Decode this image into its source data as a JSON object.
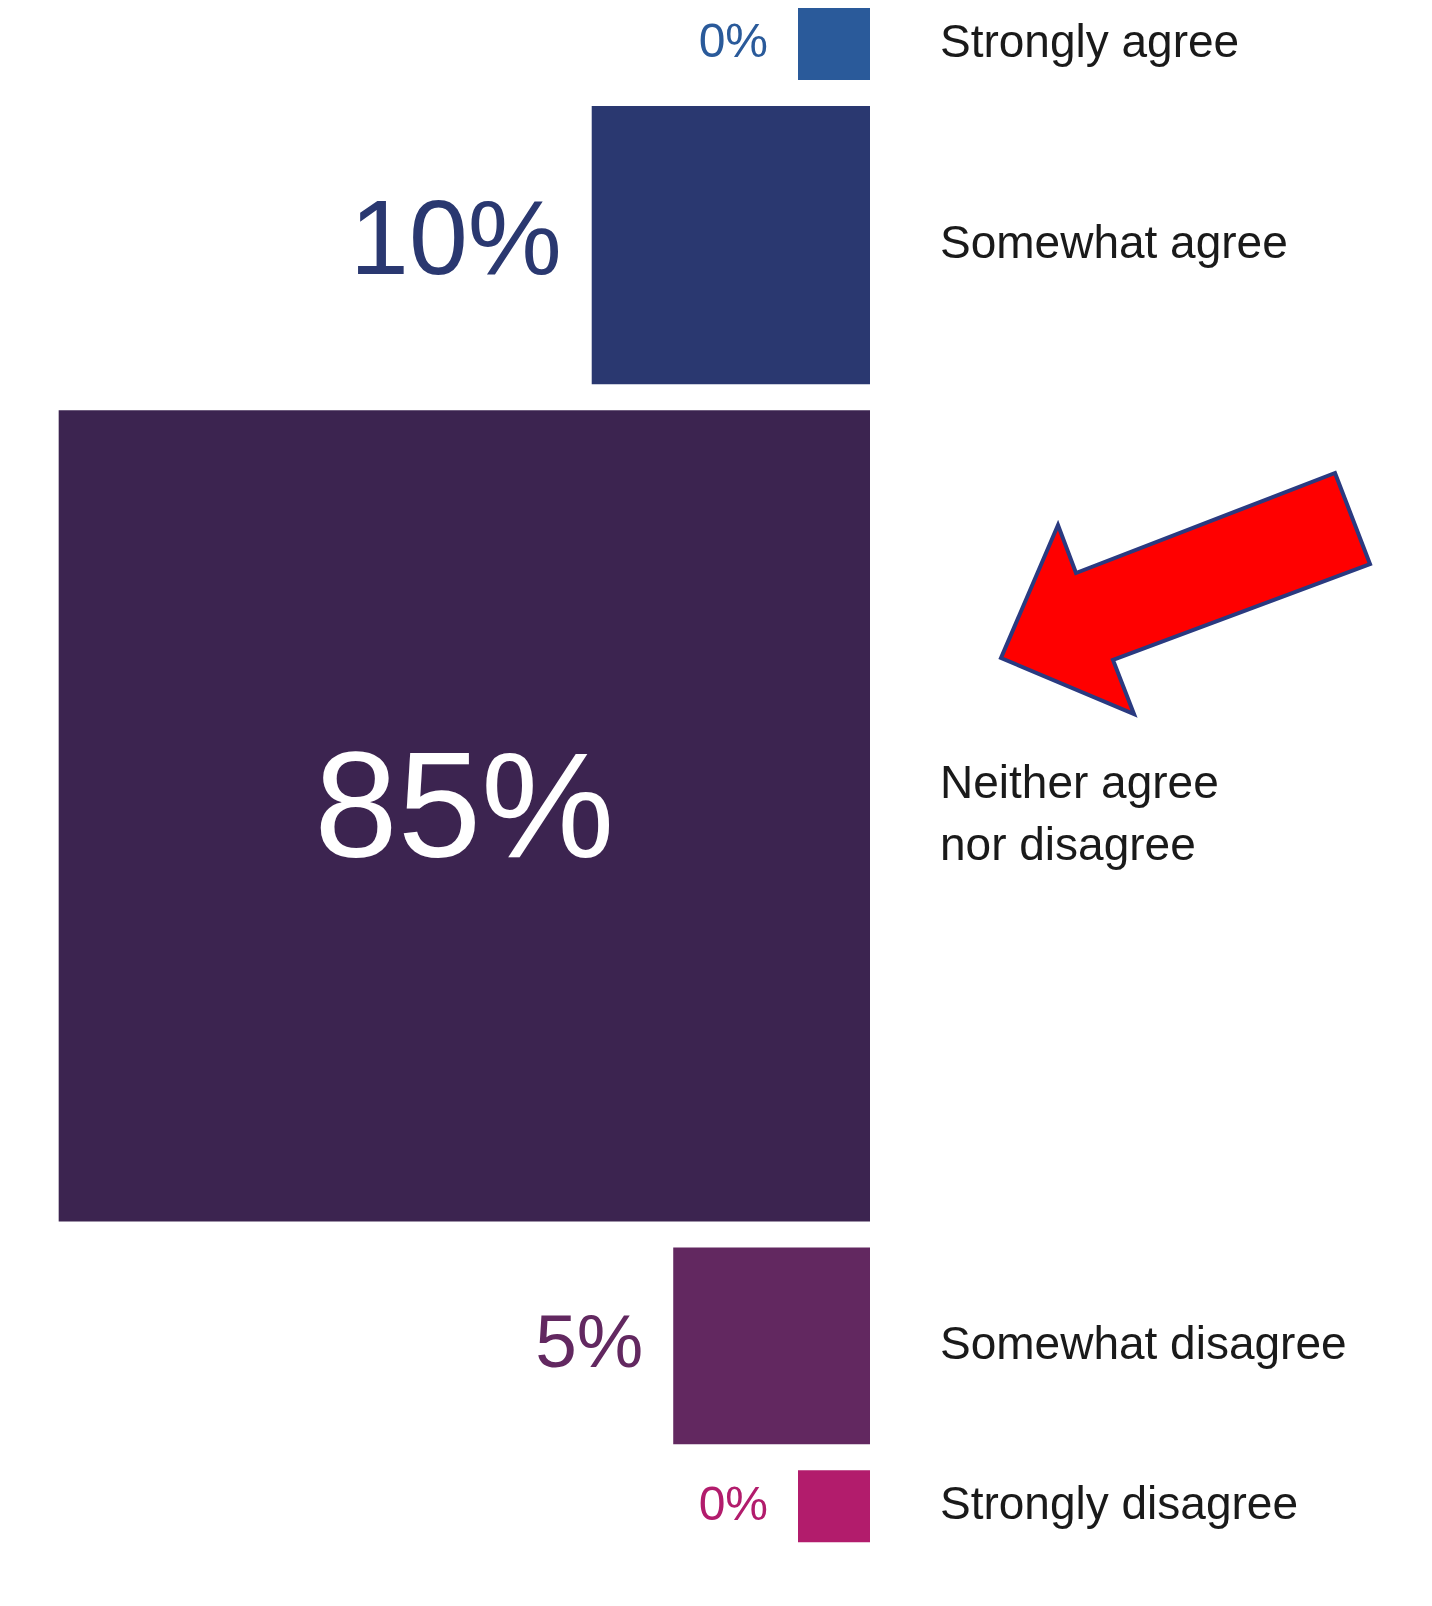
{
  "chart_data": {
    "type": "other",
    "categories": [
      "Strongly agree",
      "Somewhat agree",
      "Neither agree\nnor disagree",
      "Somewhat disagree",
      "Strongly disagree"
    ],
    "values": [
      0,
      10,
      85,
      5,
      0
    ],
    "colors": [
      "#2a5a9a",
      "#2a3870",
      "#3c2450",
      "#622860",
      "#b21c6c"
    ],
    "value_labels": [
      "0%",
      "10%",
      "85%",
      "5%",
      "0%"
    ]
  }
}
